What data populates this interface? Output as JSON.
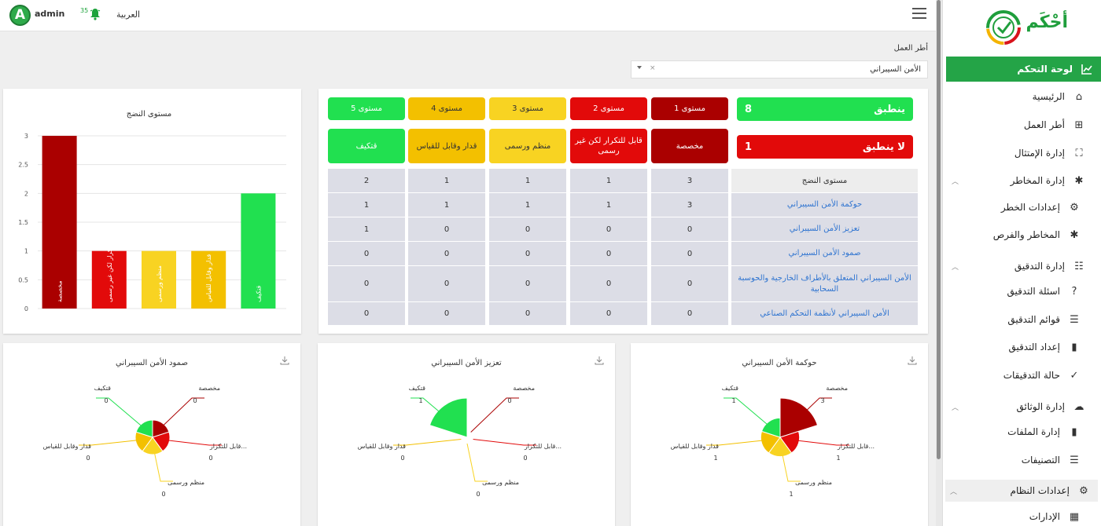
{
  "topbar": {
    "avatar_letter": "A",
    "username": "admin",
    "notification_count": "35",
    "language": "العربية"
  },
  "sidebar": {
    "logo_text": "أحْكَم",
    "items": [
      {
        "label": "لوحة التحكم",
        "icon": "line-chart-icon",
        "active": true
      },
      {
        "label": "الرئيسية",
        "icon": "home-icon"
      },
      {
        "label": "أطر العمل",
        "icon": "grid-icon"
      },
      {
        "label": "إدارة الإمتثال",
        "icon": "sitemap-icon"
      },
      {
        "label": "إدارة المخاطر",
        "icon": "asterisk-icon",
        "expandable": true
      },
      {
        "label": "إعدادات الخطر",
        "icon": "gears-icon"
      },
      {
        "label": "المخاطر والفرص",
        "icon": "asterisk-icon"
      },
      {
        "label": "إدارة التدقيق",
        "icon": "audit-icon",
        "expandable": true
      },
      {
        "label": "اسئلة التدقيق",
        "icon": "question-icon"
      },
      {
        "label": "قوائم التدقيق",
        "icon": "checklist-icon"
      },
      {
        "label": "إعداد التدقيق",
        "icon": "file-icon"
      },
      {
        "label": "حالة التدقيقات",
        "icon": "check-icon"
      },
      {
        "label": "إدارة الوثائق",
        "icon": "cloud-upload-icon",
        "expandable": true
      },
      {
        "label": "إدارة الملفات",
        "icon": "file-icon"
      },
      {
        "label": "التصنيفات",
        "icon": "list-icon"
      },
      {
        "label": "إعدادات النظام",
        "icon": "gears-icon",
        "expandable": true
      },
      {
        "label": "الإدارات",
        "icon": "building-icon"
      }
    ]
  },
  "framework": {
    "label": "أطر العمل",
    "selected": "الأمن السيبراني",
    "clear": "×"
  },
  "maturity": {
    "levels": [
      {
        "label": "مستوى 1",
        "desc": "مخصصة",
        "color": "#aa0000"
      },
      {
        "label": "مستوى 2",
        "desc": "قابل للتكرار لكن غير رسمى",
        "color": "#e20a0a"
      },
      {
        "label": "مستوى 3",
        "desc": "منظم ورسمى",
        "color": "#f8d322"
      },
      {
        "label": "مستوى 4",
        "desc": "قدار وقابل للقياس",
        "color": "#f3c000"
      },
      {
        "label": "مستوى 5",
        "desc": "قتكيف",
        "color": "#21e050"
      }
    ],
    "applies_label": "ينطبق",
    "applies_value": "8",
    "not_applies_label": "لا ينطبق",
    "not_applies_value": "1",
    "header": "مستوى النضج",
    "rows": [
      {
        "name": "",
        "values": [
          "3",
          "1",
          "1",
          "1",
          "2"
        ]
      },
      {
        "name": "حوكمة الأمن السيبراني",
        "values": [
          "3",
          "1",
          "1",
          "1",
          "1"
        ]
      },
      {
        "name": "تعزيز الأمن السيبراني",
        "values": [
          "0",
          "0",
          "0",
          "0",
          "1"
        ]
      },
      {
        "name": "صمود الأمن السيبراني",
        "values": [
          "0",
          "0",
          "0",
          "0",
          "0"
        ]
      },
      {
        "name": "الأمن السيبراني المتعلق بالأطراف الخارجية والحوسبة السحابية",
        "values": [
          "0",
          "0",
          "0",
          "0",
          "0"
        ]
      },
      {
        "name": "الأمن السيبراني لأنظمة التحكم الصناعي",
        "values": [
          "0",
          "0",
          "0",
          "0",
          "0"
        ]
      }
    ]
  },
  "bar_chart": {
    "title": "مستوى النضج",
    "chart_data": {
      "type": "bar",
      "categories": [
        "مخصصة",
        "قابل للتكرار لكن غير رسمى",
        "منظم ورسمى",
        "قدار وقابل للقياس",
        "قتكيف"
      ],
      "values": [
        3,
        1,
        1,
        1,
        2
      ],
      "colors": [
        "#aa0000",
        "#e20a0a",
        "#f8d322",
        "#f3c000",
        "#21e050"
      ],
      "ylim": [
        0,
        3
      ],
      "yticks": [
        "0",
        "0.5",
        "1",
        "1.5",
        "2",
        "2.5",
        "3"
      ],
      "grid": true
    }
  },
  "radar_charts": [
    {
      "title": "حوكمة الأمن السيبراني",
      "labels": [
        "مخصصة",
        "قابل للتكرار...",
        "منظم ورسمى",
        "قدار وقابل للقياس",
        "قتكيف"
      ],
      "values": [
        3,
        1,
        1,
        1,
        1
      ]
    },
    {
      "title": "تعزيز الأمن السيبراني",
      "labels": [
        "مخصصة",
        "قابل للتكرار...",
        "منظم ورسمى",
        "قدار وقابل للقياس",
        "قتكيف"
      ],
      "values": [
        0,
        0,
        0,
        0,
        1
      ]
    },
    {
      "title": "صمود الأمن السيبراني",
      "labels": [
        "مخصصة",
        "قابل للتكرار...",
        "منظم ورسمى",
        "قدار وقابل للقياس",
        "قتكيف"
      ],
      "values": [
        0,
        0,
        0,
        0,
        0
      ]
    }
  ],
  "chart_data": [
    {
      "type": "bar",
      "title": "مستوى النضج",
      "categories": [
        "مخصصة",
        "قابل للتكرار لكن غير رسمى",
        "منظم ورسمى",
        "قدار وقابل للقياس",
        "قتكيف"
      ],
      "values": [
        3,
        1,
        1,
        1,
        2
      ],
      "ylim": [
        0,
        3
      ]
    },
    {
      "type": "pie",
      "title": "حوكمة الأمن السيبراني",
      "categories": [
        "مخصصة",
        "قابل للتكرار...",
        "منظم ورسمى",
        "قدار وقابل للقياس",
        "قتكيف"
      ],
      "values": [
        3,
        1,
        1,
        1,
        1
      ]
    },
    {
      "type": "pie",
      "title": "تعزيز الأمن السيبراني",
      "categories": [
        "مخصصة",
        "قابل للتكرار...",
        "منظم ورسمى",
        "قدار وقابل للقياس",
        "قتكيف"
      ],
      "values": [
        0,
        0,
        0,
        0,
        1
      ]
    },
    {
      "type": "pie",
      "title": "صمود الأمن السيبراني",
      "categories": [
        "مخصصة",
        "قابل للتكرار...",
        "منظم ورسمى",
        "قدار وقابل للقياس",
        "قتكيف"
      ],
      "values": [
        0,
        0,
        0,
        0,
        0
      ]
    }
  ]
}
